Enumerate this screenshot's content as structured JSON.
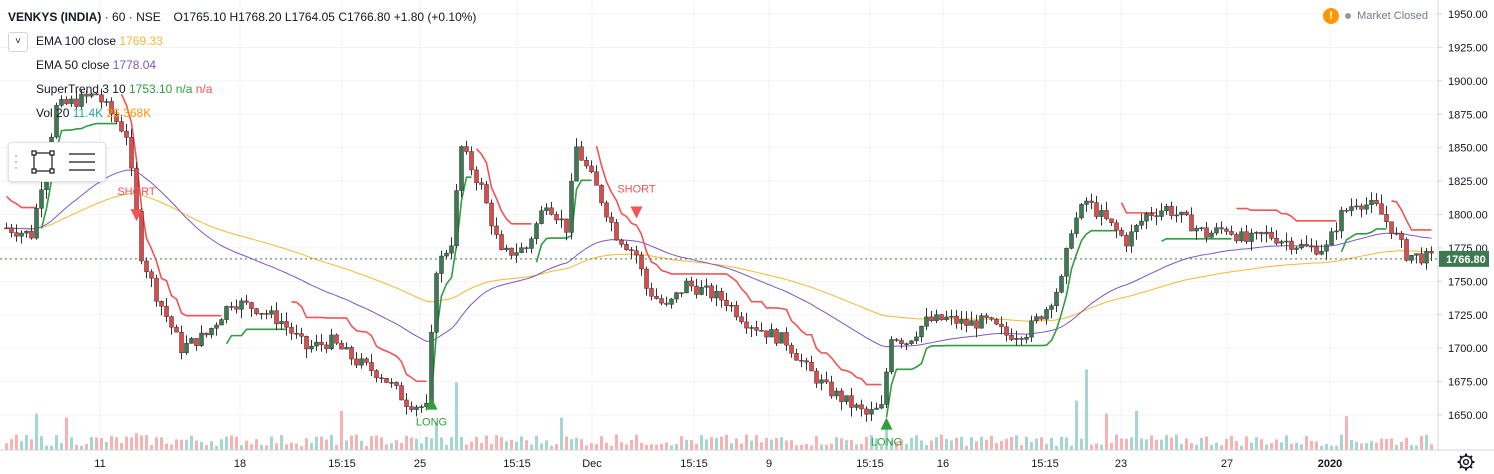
{
  "header": {
    "symbol": "VENKYS (INDIA)",
    "interval": "60",
    "exchange": "NSE",
    "sep": "·",
    "open": "O1765.10",
    "high": "H1768.20",
    "low": "L1764.05",
    "close": "C1766.80",
    "change": "+1.80 (+0.10%)"
  },
  "indicators": [
    {
      "label": "EMA 100 close",
      "value": "1769.33",
      "color": "#f7b733"
    },
    {
      "label": "EMA 50 close",
      "value": "1778.04",
      "color": "#7e57c2"
    },
    {
      "label": "SuperTrend 3 10",
      "value": "1753.10",
      "extra": "n/a",
      "extra2": "n/a",
      "color": "#2e9e3e",
      "extra_color": "#ef5350"
    },
    {
      "label": "Vol 20",
      "value": "11.4K",
      "value2": "26.368K",
      "color": "#26a69a",
      "value2_color": "#ff9800"
    }
  ],
  "market_status": "Market Closed",
  "warn_glyph": "!",
  "collapse_glyph": "˅",
  "colors": {
    "up": "#26a69a",
    "down": "#ef5350",
    "body_up": "#3d7a51",
    "body_down": "#e04a4a",
    "st_up": "#2e9e3e",
    "st_down": "#f25454",
    "ema100": "#f7b733",
    "ema50": "#7e57c2",
    "vol_up": "#a5d6d0",
    "vol_down": "#f7b3b3",
    "last_label": "#3d7a51"
  },
  "chart_data": {
    "type": "candlestick",
    "y_axis_ticks": [
      1650,
      1675,
      1700,
      1725,
      1750,
      1775,
      1800,
      1825,
      1850,
      1875,
      1900,
      1925,
      1950
    ],
    "y_tick_labels": [
      "1650.00",
      "1675.00",
      "1700.00",
      "1725.00",
      "1750.00",
      "1775.00",
      "1800.00",
      "1825.00",
      "1850.00",
      "1875.00",
      "1900.00",
      "1925.00",
      "1950.00"
    ],
    "ylim": [
      1630,
      1955
    ],
    "x_tick_labels": [
      "11",
      "18",
      "15:15",
      "25",
      "15:15",
      "Dec",
      "15:15",
      "9",
      "15:15",
      "16",
      "15:15",
      "23",
      "27",
      "2020"
    ],
    "bold_x_labels": [
      "2020"
    ],
    "last_price": 1766.8,
    "last_price_label": "1766.80",
    "annotations": [
      {
        "text": "SHORT",
        "type": "sell",
        "bar": 26,
        "price": 1798
      },
      {
        "text": "LONG",
        "type": "buy",
        "bar": 85,
        "price": 1660
      },
      {
        "text": "SHORT",
        "type": "sell",
        "bar": 126,
        "price": 1800
      },
      {
        "text": "LONG",
        "type": "buy",
        "bar": 176,
        "price": 1645
      }
    ],
    "keypoints": [
      [
        0,
        1790
      ],
      [
        5,
        1785
      ],
      [
        10,
        1880
      ],
      [
        18,
        1890
      ],
      [
        24,
        1860
      ],
      [
        27,
        1770
      ],
      [
        30,
        1740
      ],
      [
        35,
        1700
      ],
      [
        40,
        1710
      ],
      [
        45,
        1735
      ],
      [
        50,
        1730
      ],
      [
        55,
        1720
      ],
      [
        60,
        1700
      ],
      [
        65,
        1705
      ],
      [
        70,
        1690
      ],
      [
        75,
        1680
      ],
      [
        80,
        1660
      ],
      [
        84,
        1655
      ],
      [
        86,
        1760
      ],
      [
        89,
        1780
      ],
      [
        91,
        1850
      ],
      [
        95,
        1820
      ],
      [
        99,
        1770
      ],
      [
        104,
        1775
      ],
      [
        108,
        1810
      ],
      [
        112,
        1790
      ],
      [
        114,
        1850
      ],
      [
        118,
        1820
      ],
      [
        122,
        1785
      ],
      [
        126,
        1770
      ],
      [
        128,
        1745
      ],
      [
        132,
        1730
      ],
      [
        136,
        1748
      ],
      [
        140,
        1742
      ],
      [
        144,
        1735
      ],
      [
        148,
        1720
      ],
      [
        152,
        1712
      ],
      [
        156,
        1705
      ],
      [
        160,
        1685
      ],
      [
        164,
        1670
      ],
      [
        168,
        1660
      ],
      [
        172,
        1650
      ],
      [
        175,
        1655
      ],
      [
        177,
        1710
      ],
      [
        180,
        1705
      ],
      [
        184,
        1720
      ],
      [
        188,
        1722
      ],
      [
        192,
        1718
      ],
      [
        196,
        1720
      ],
      [
        200,
        1710
      ],
      [
        204,
        1712
      ],
      [
        208,
        1730
      ],
      [
        211,
        1750
      ],
      [
        213,
        1790
      ],
      [
        216,
        1810
      ],
      [
        220,
        1795
      ],
      [
        224,
        1780
      ],
      [
        228,
        1800
      ],
      [
        232,
        1805
      ],
      [
        236,
        1795
      ],
      [
        240,
        1785
      ],
      [
        244,
        1790
      ],
      [
        248,
        1780
      ],
      [
        252,
        1785
      ],
      [
        256,
        1780
      ],
      [
        260,
        1775
      ],
      [
        264,
        1775
      ],
      [
        267,
        1800
      ],
      [
        270,
        1810
      ],
      [
        274,
        1805
      ],
      [
        277,
        1790
      ],
      [
        280,
        1770
      ],
      [
        285,
        1767
      ]
    ],
    "volume_spikes": [
      [
        6,
        28
      ],
      [
        12,
        25
      ],
      [
        26,
        13
      ],
      [
        67,
        30
      ],
      [
        86,
        22
      ],
      [
        90,
        52
      ],
      [
        111,
        25
      ],
      [
        122,
        12
      ],
      [
        176,
        22
      ],
      [
        214,
        38
      ],
      [
        216,
        62
      ],
      [
        220,
        28
      ],
      [
        226,
        30
      ],
      [
        268,
        26
      ]
    ]
  }
}
